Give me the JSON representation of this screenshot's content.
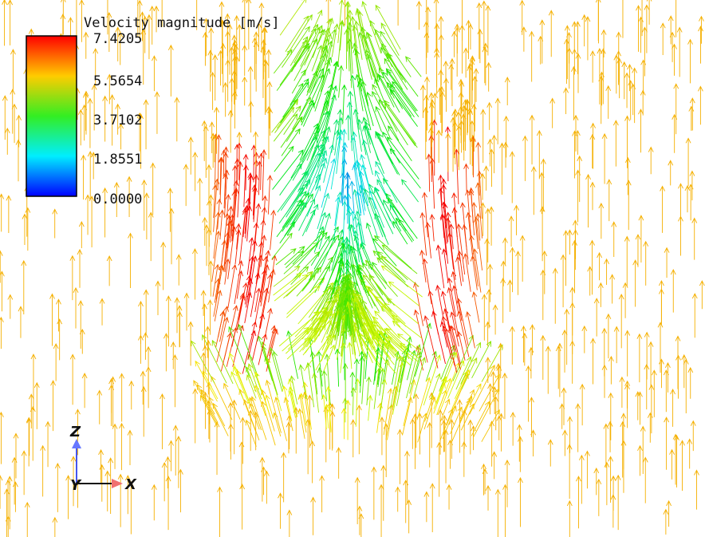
{
  "legend": {
    "title": "Velocity magnitude [m/s]",
    "labels": [
      "7.4205",
      "5.5654",
      "3.7102",
      "1.8551",
      "0.0000"
    ]
  },
  "triad": {
    "z": "Z",
    "x": "X",
    "y": "Y"
  }
}
